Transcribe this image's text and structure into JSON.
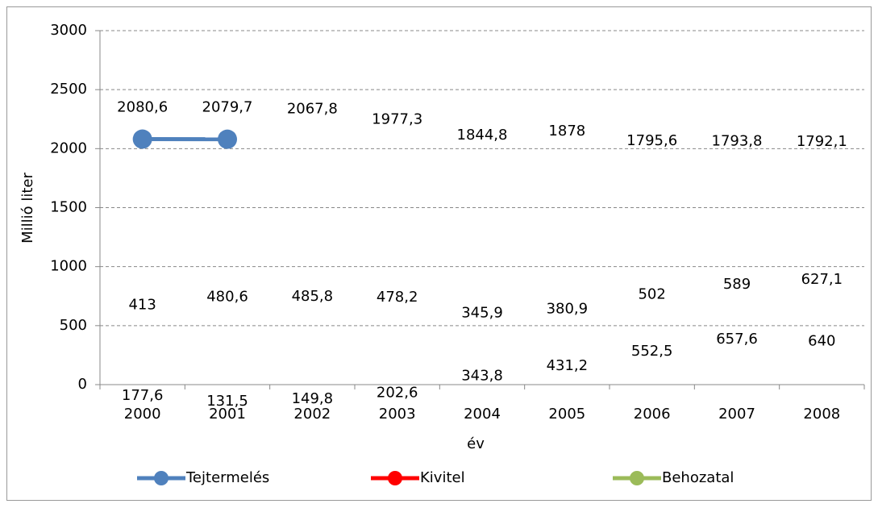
{
  "chart_data": {
    "type": "line",
    "x_label": "év",
    "y_label": "Millió liter",
    "categories": [
      "2000",
      "2001",
      "2002",
      "2003",
      "2004",
      "2005",
      "2006",
      "2007",
      "2008"
    ],
    "series": [
      {
        "name": "Tejtermelés",
        "color": "#4f81bd",
        "values": [
          2080.6,
          2079.7,
          2067.8,
          1977.3,
          1844.8,
          1878,
          1795.6,
          1793.8,
          1792.1
        ],
        "value_labels": [
          "2080,6",
          "2079,7",
          "2067,8",
          "1977,3",
          "1844,8",
          "1878",
          "1795,6",
          "1793,8",
          "1792,1"
        ]
      },
      {
        "name": "Kivitel",
        "color": "#ff0000",
        "values": [
          413,
          480.6,
          485.8,
          478.2,
          345.9,
          380.9,
          502,
          589,
          627.1
        ],
        "value_labels": [
          "413",
          "480,6",
          "485,8",
          "478,2",
          "345,9",
          "380,9",
          "502",
          "589",
          "627,1"
        ]
      },
      {
        "name": "Behozatal",
        "color": "#9bbb59",
        "values": [
          177.6,
          131.5,
          149.8,
          202.6,
          343.8,
          431.2,
          552.5,
          657.6,
          640
        ],
        "value_labels": [
          "177,6",
          "131,5",
          "149,8",
          "202,6",
          "343,8",
          "431,2",
          "552,5",
          "657,6",
          "640"
        ]
      }
    ],
    "ylim": [
      0,
      3000
    ],
    "yticks": [
      0,
      500,
      1000,
      1500,
      2000,
      2500,
      3000
    ],
    "grid": true
  }
}
